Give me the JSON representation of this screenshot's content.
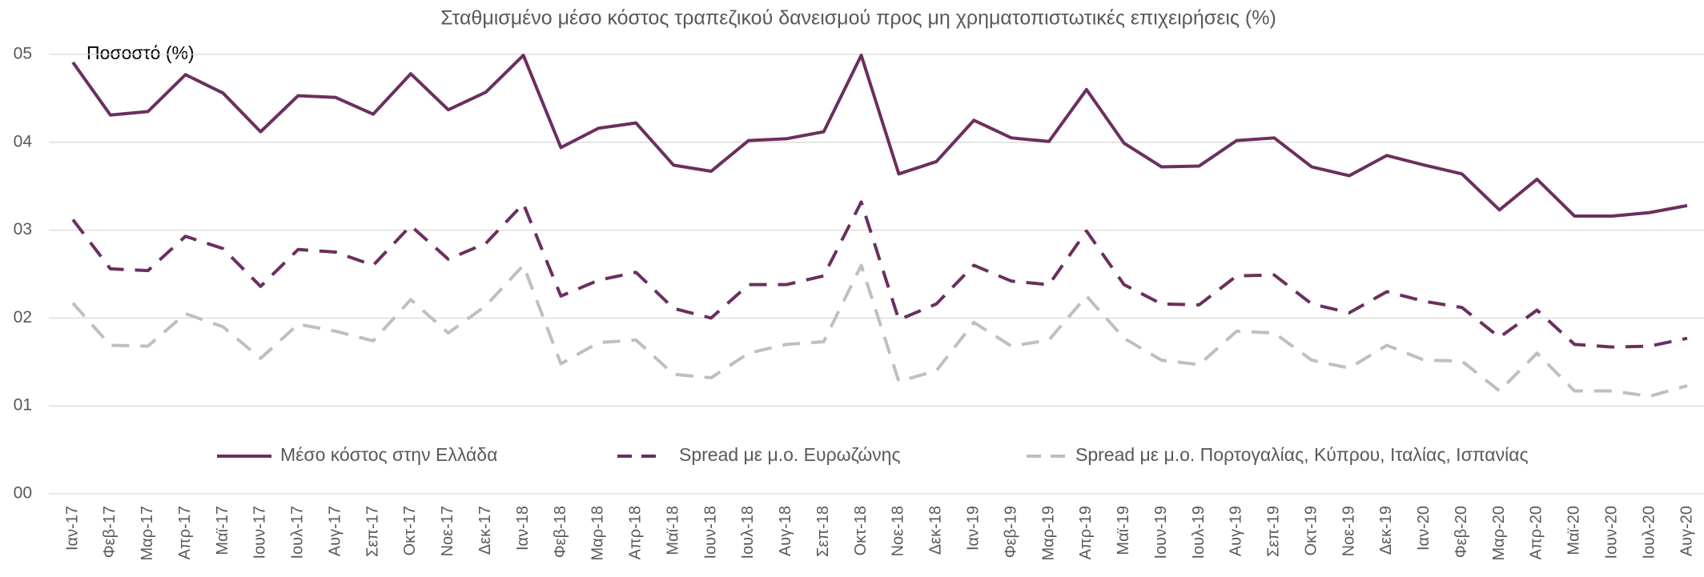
{
  "chart_data": {
    "type": "line",
    "title": "Σταθμισμένο μέσο κόστος τραπεζικού δανεισμού προς μη χρηματοπιστωτικές επιχειρήσεις (%)",
    "y_label": "Ποσοστό (%)",
    "categories": [
      "Ιαν-17",
      "Φεβ-17",
      "Μαρ-17",
      "Απρ-17",
      "Μαϊ-17",
      "Ιουν-17",
      "Ιουλ-17",
      "Αυγ-17",
      "Σεπ-17",
      "Οκτ-17",
      "Νοε-17",
      "Δεκ-17",
      "Ιαν-18",
      "Φεβ-18",
      "Μαρ-18",
      "Απρ-18",
      "Μαϊ-18",
      "Ιουν-18",
      "Ιουλ-18",
      "Αυγ-18",
      "Σεπ-18",
      "Οκτ-18",
      "Νοε-18",
      "Δεκ-18",
      "Ιαν-19",
      "Φεβ-19",
      "Μαρ-19",
      "Απρ-19",
      "Μαϊ-19",
      "Ιουν-19",
      "Ιουλ-19",
      "Αυγ-19",
      "Σεπ-19",
      "Οκτ-19",
      "Νοε-19",
      "Δεκ-19",
      "Ιαν-20",
      "Φεβ-20",
      "Μαρ-20",
      "Απρ-20",
      "Μαϊ-20",
      "Ιουν-20",
      "Ιουλ-20",
      "Αυγ-20"
    ],
    "series": [
      {
        "name": "Μέσο κόστος στην Ελλάδα",
        "color": "#6b2f5e",
        "style": "solid",
        "values": [
          4.91,
          4.31,
          4.35,
          4.77,
          4.56,
          4.12,
          4.53,
          4.51,
          4.32,
          4.78,
          4.37,
          4.57,
          4.99,
          3.94,
          4.16,
          4.22,
          3.74,
          3.67,
          4.02,
          4.04,
          4.12,
          4.99,
          3.64,
          3.78,
          4.25,
          4.05,
          4.01,
          4.6,
          3.99,
          3.72,
          3.73,
          4.02,
          4.05,
          3.72,
          3.62,
          3.85,
          3.74,
          3.64,
          3.23,
          3.58,
          3.16,
          3.16,
          3.2,
          3.28
        ]
      },
      {
        "name": "Spread με μ.ο. Ευρωζώνης",
        "color": "#6b2f5e",
        "style": "dashed",
        "values": [
          3.12,
          2.56,
          2.54,
          2.93,
          2.79,
          2.36,
          2.78,
          2.75,
          2.6,
          3.05,
          2.67,
          2.85,
          3.3,
          2.25,
          2.43,
          2.52,
          2.11,
          2.0,
          2.38,
          2.38,
          2.48,
          3.32,
          1.98,
          2.16,
          2.6,
          2.42,
          2.38,
          2.99,
          2.38,
          2.16,
          2.15,
          2.48,
          2.49,
          2.16,
          2.06,
          2.3,
          2.19,
          2.12,
          1.78,
          2.09,
          1.7,
          1.67,
          1.68,
          1.77
        ]
      },
      {
        "name": "Spread με μ.ο. Πορτογαλίας, Κύπρου, Ιταλίας, Ισπανίας",
        "color": "#bfbfbf",
        "style": "dashed",
        "values": [
          2.17,
          1.69,
          1.68,
          2.05,
          1.9,
          1.54,
          1.93,
          1.85,
          1.74,
          2.21,
          1.83,
          2.14,
          2.6,
          1.48,
          1.72,
          1.75,
          1.36,
          1.32,
          1.6,
          1.7,
          1.73,
          2.6,
          1.28,
          1.4,
          1.95,
          1.68,
          1.75,
          2.25,
          1.77,
          1.52,
          1.47,
          1.85,
          1.83,
          1.52,
          1.43,
          1.69,
          1.52,
          1.51,
          1.17,
          1.6,
          1.17,
          1.17,
          1.11,
          1.23
        ]
      }
    ],
    "ylim": [
      0,
      5
    ],
    "yticks": [
      {
        "value": 0,
        "label": "00"
      },
      {
        "value": 1,
        "label": "01"
      },
      {
        "value": 2,
        "label": "02"
      },
      {
        "value": 3,
        "label": "03"
      },
      {
        "value": 4,
        "label": "04"
      },
      {
        "value": 5,
        "label": "05"
      }
    ],
    "grid": true,
    "legend": "bottom"
  }
}
